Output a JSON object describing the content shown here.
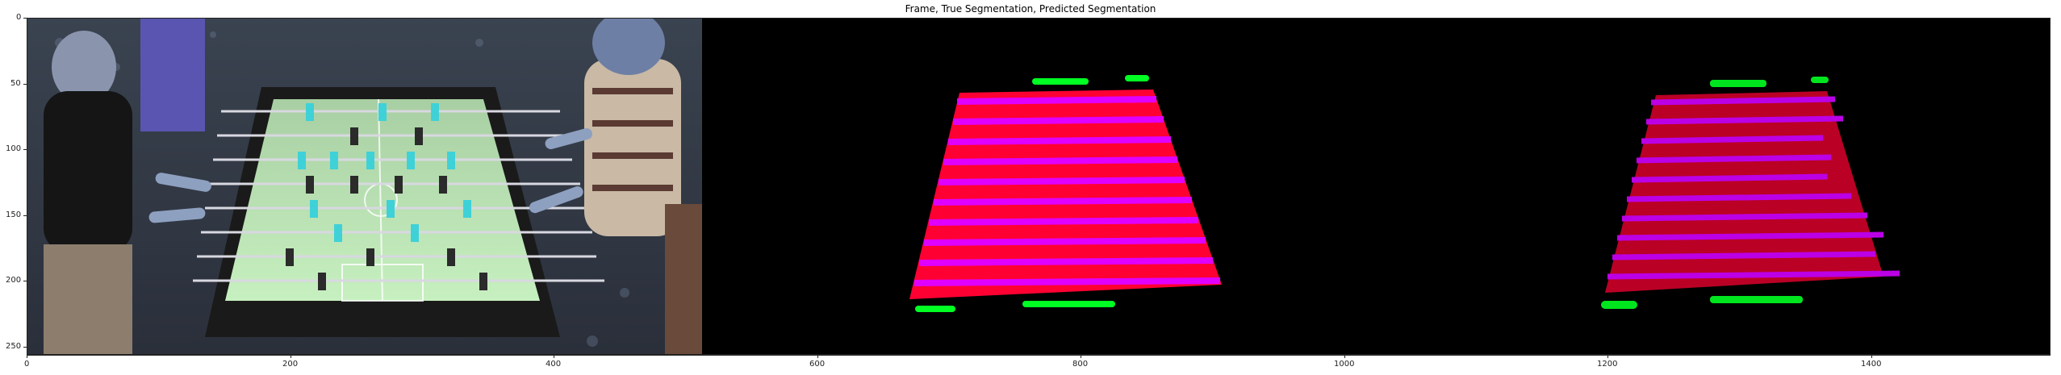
{
  "figure": {
    "title": "Frame, True Segmentation, Predicted Segmentation"
  },
  "axes": {
    "x_ticks": [
      "0",
      "200",
      "400",
      "600",
      "800",
      "1000",
      "1200",
      "1400"
    ],
    "y_ticks": [
      "0",
      "50",
      "100",
      "150",
      "200",
      "250"
    ],
    "xlim": [
      0,
      1536
    ],
    "ylim": [
      256,
      0
    ]
  },
  "colors": {
    "background": "#000000",
    "field_red": "#ff0033",
    "stripe_magenta": "#e000ff",
    "marker_green": "#00ff22",
    "table_green": "#b9e6b4",
    "table_frame": "#111111"
  }
}
